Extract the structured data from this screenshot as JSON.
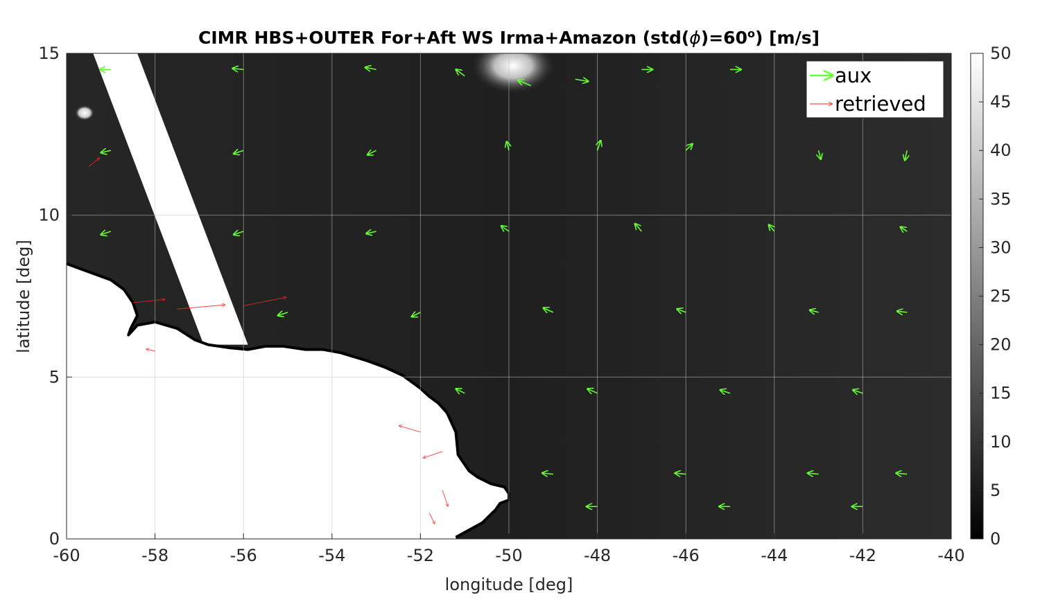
{
  "chart_data": {
    "type": "vector-field-heatmap",
    "title_main": "CIMR HBS+OUTER For+Aft WS Irma+Amazon (std(",
    "title_phi": "ϕ",
    "title_eq": ")=60",
    "title_sup": "o",
    "title_tail": ") [m/s]",
    "xlabel": "longitude [deg]",
    "ylabel": "latitude [deg]",
    "xlim": [
      -60,
      -40
    ],
    "ylim": [
      0,
      15
    ],
    "xticks": [
      -60,
      -58,
      -56,
      -54,
      -52,
      -50,
      -48,
      -46,
      -44,
      -42,
      -40
    ],
    "yticks": [
      0,
      5,
      10,
      15
    ],
    "grid": true,
    "colorbar": {
      "range": [
        0,
        50
      ],
      "ticks": [
        0,
        5,
        10,
        15,
        20,
        25,
        30,
        35,
        40,
        45,
        50
      ],
      "colormap": "gray"
    },
    "legend": {
      "placement": "top-right",
      "entries": [
        {
          "name": "aux",
          "color": "#66ff33"
        },
        {
          "name": "retrieved",
          "color": "#ff2222"
        }
      ]
    },
    "coastline": [
      [
        -60.0,
        8.5
      ],
      [
        -59.6,
        8.3
      ],
      [
        -59.0,
        8.0
      ],
      [
        -58.7,
        7.7
      ],
      [
        -58.5,
        7.3
      ],
      [
        -58.4,
        6.9
      ],
      [
        -58.55,
        6.5
      ],
      [
        -58.6,
        6.3
      ],
      [
        -58.4,
        6.6
      ],
      [
        -58.0,
        6.7
      ],
      [
        -57.5,
        6.5
      ],
      [
        -57.1,
        6.15
      ],
      [
        -56.8,
        6.0
      ],
      [
        -56.3,
        5.9
      ],
      [
        -55.9,
        5.85
      ],
      [
        -55.5,
        5.95
      ],
      [
        -55.1,
        5.95
      ],
      [
        -54.6,
        5.85
      ],
      [
        -54.2,
        5.85
      ],
      [
        -53.8,
        5.75
      ],
      [
        -53.2,
        5.5
      ],
      [
        -52.8,
        5.3
      ],
      [
        -52.4,
        5.05
      ],
      [
        -52.0,
        4.65
      ],
      [
        -51.8,
        4.4
      ],
      [
        -51.6,
        4.2
      ],
      [
        -51.4,
        3.9
      ],
      [
        -51.2,
        3.3
      ],
      [
        -51.15,
        2.6
      ],
      [
        -50.9,
        2.1
      ],
      [
        -50.7,
        1.9
      ],
      [
        -50.4,
        1.7
      ],
      [
        -50.1,
        1.6
      ],
      [
        -50.0,
        1.4
      ],
      [
        -50.0,
        1.2
      ],
      [
        -50.2,
        1.1
      ],
      [
        -50.3,
        0.9
      ],
      [
        -50.6,
        0.5
      ],
      [
        -51.0,
        0.2
      ],
      [
        -51.2,
        0.05
      ]
    ],
    "swath_gap": {
      "corners": [
        [
          -59.4,
          15.0
        ],
        [
          -58.4,
          15.0
        ],
        [
          -55.9,
          6.0
        ],
        [
          -56.9,
          6.0
        ]
      ],
      "description_value": "white (no data)"
    },
    "aux_vector_scale": 0.24,
    "aux_vectors": [
      {
        "x": -59.0,
        "y": 14.5,
        "u": -1.0,
        "v": 0.0
      },
      {
        "x": -56.0,
        "y": 14.5,
        "u": -1.0,
        "v": 0.1
      },
      {
        "x": -53.0,
        "y": 14.5,
        "u": -1.0,
        "v": 0.2
      },
      {
        "x": -51.0,
        "y": 14.3,
        "u": -0.8,
        "v": 0.6
      },
      {
        "x": -49.5,
        "y": 14.0,
        "u": -1.2,
        "v": 0.5
      },
      {
        "x": -48.5,
        "y": 14.2,
        "u": 1.2,
        "v": -0.2
      },
      {
        "x": -47.0,
        "y": 14.5,
        "u": 1.0,
        "v": 0.0
      },
      {
        "x": -45.0,
        "y": 14.5,
        "u": 1.0,
        "v": 0.0
      },
      {
        "x": -43.0,
        "y": 14.5,
        "u": 1.0,
        "v": 0.1
      },
      {
        "x": -41.0,
        "y": 14.0,
        "u": 0.7,
        "v": -0.6
      },
      {
        "x": -59.0,
        "y": 12.0,
        "u": -0.9,
        "v": -0.2
      },
      {
        "x": -56.0,
        "y": 12.0,
        "u": -0.9,
        "v": -0.3
      },
      {
        "x": -53.0,
        "y": 12.0,
        "u": -0.8,
        "v": -0.4
      },
      {
        "x": -50.0,
        "y": 12.0,
        "u": -0.2,
        "v": 0.8
      },
      {
        "x": -48.0,
        "y": 12.0,
        "u": 0.3,
        "v": 0.9
      },
      {
        "x": -46.0,
        "y": 12.0,
        "u": 0.6,
        "v": 0.6
      },
      {
        "x": -43.0,
        "y": 12.0,
        "u": 0.2,
        "v": -0.8
      },
      {
        "x": -41.0,
        "y": 12.0,
        "u": -0.2,
        "v": -0.9
      },
      {
        "x": -59.0,
        "y": 9.5,
        "u": -0.9,
        "v": -0.3
      },
      {
        "x": -56.0,
        "y": 9.5,
        "u": -0.9,
        "v": -0.3
      },
      {
        "x": -53.0,
        "y": 9.5,
        "u": -0.9,
        "v": -0.2
      },
      {
        "x": -50.0,
        "y": 9.5,
        "u": -0.7,
        "v": 0.5
      },
      {
        "x": -47.0,
        "y": 9.5,
        "u": -0.6,
        "v": 0.7
      },
      {
        "x": -44.0,
        "y": 9.5,
        "u": -0.5,
        "v": 0.6
      },
      {
        "x": -41.0,
        "y": 9.5,
        "u": -0.6,
        "v": 0.4
      },
      {
        "x": -55.0,
        "y": 7.0,
        "u": -0.9,
        "v": -0.3
      },
      {
        "x": -52.0,
        "y": 7.0,
        "u": -0.8,
        "v": -0.4
      },
      {
        "x": -49.0,
        "y": 7.0,
        "u": -0.9,
        "v": 0.4
      },
      {
        "x": -46.0,
        "y": 7.0,
        "u": -0.8,
        "v": 0.3
      },
      {
        "x": -43.0,
        "y": 7.0,
        "u": -0.8,
        "v": 0.2
      },
      {
        "x": -41.0,
        "y": 7.0,
        "u": -0.9,
        "v": 0.1
      },
      {
        "x": -51.0,
        "y": 4.5,
        "u": -0.8,
        "v": 0.4
      },
      {
        "x": -48.0,
        "y": 4.5,
        "u": -0.9,
        "v": 0.4
      },
      {
        "x": -45.0,
        "y": 4.5,
        "u": -0.9,
        "v": 0.3
      },
      {
        "x": -42.0,
        "y": 4.5,
        "u": -0.9,
        "v": 0.3
      },
      {
        "x": -49.0,
        "y": 2.0,
        "u": -1.0,
        "v": 0.1
      },
      {
        "x": -46.0,
        "y": 2.0,
        "u": -1.0,
        "v": 0.1
      },
      {
        "x": -43.0,
        "y": 2.0,
        "u": -1.0,
        "v": 0.1
      },
      {
        "x": -41.0,
        "y": 2.0,
        "u": -1.0,
        "v": 0.1
      },
      {
        "x": -48.0,
        "y": 1.0,
        "u": -1.0,
        "v": 0.0
      },
      {
        "x": -45.0,
        "y": 1.0,
        "u": -1.0,
        "v": 0.0
      },
      {
        "x": -42.0,
        "y": 1.0,
        "u": -1.0,
        "v": 0.0
      }
    ],
    "retrieved_outliers": [
      {
        "x": -58.5,
        "y": 7.3,
        "u": 3.0,
        "v": 0.3
      },
      {
        "x": -57.5,
        "y": 7.1,
        "u": 4.5,
        "v": 0.4
      },
      {
        "x": -56.0,
        "y": 7.2,
        "u": 4.0,
        "v": 0.8
      },
      {
        "x": -58.0,
        "y": 5.8,
        "u": -0.8,
        "v": 0.2
      },
      {
        "x": -59.5,
        "y": 11.5,
        "u": 1.0,
        "v": 0.8
      },
      {
        "x": -52.0,
        "y": 3.3,
        "u": -2.0,
        "v": 0.6
      },
      {
        "x": -51.5,
        "y": 2.7,
        "u": -1.8,
        "v": -0.6
      },
      {
        "x": -51.5,
        "y": 1.5,
        "u": 0.5,
        "v": -1.5
      },
      {
        "x": -51.8,
        "y": 0.8,
        "u": 0.5,
        "v": -1.0
      }
    ]
  }
}
